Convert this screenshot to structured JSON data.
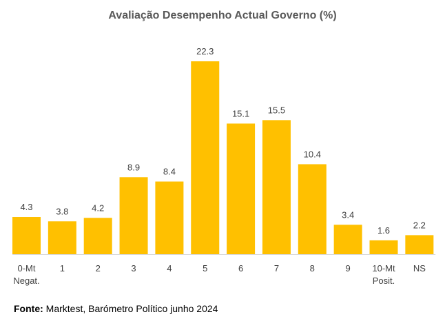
{
  "title": "Avaliação Desempenho Actual Governo (%)",
  "source": {
    "label": "Fonte:",
    "text": " Marktest, Barómetro Político junho 2024"
  },
  "colors": {
    "bar": "#FFC000",
    "baseline": "#D9D9D9",
    "text": "#404040"
  },
  "chart_data": {
    "type": "bar",
    "title": "Avaliação Desempenho Actual Governo (%)",
    "categories": [
      [
        "0-Mt",
        "Negat."
      ],
      [
        "1"
      ],
      [
        "2"
      ],
      [
        "3"
      ],
      [
        "4"
      ],
      [
        "5"
      ],
      [
        "6"
      ],
      [
        "7"
      ],
      [
        "8"
      ],
      [
        "9"
      ],
      [
        "10-Mt",
        "Posit."
      ],
      [
        "NS"
      ]
    ],
    "values": [
      4.3,
      3.8,
      4.2,
      8.9,
      8.4,
      22.3,
      15.1,
      15.5,
      10.4,
      3.4,
      1.6,
      2.2
    ],
    "value_labels": [
      "4.3",
      "3.8",
      "4.2",
      "8.9",
      "8.4",
      "22.3",
      "15.1",
      "15.5",
      "10.4",
      "3.4",
      "1.6",
      "2.2"
    ],
    "xlabel": "",
    "ylabel": "",
    "ylim": [
      0,
      22.3
    ],
    "grid": false,
    "legend": "none"
  }
}
